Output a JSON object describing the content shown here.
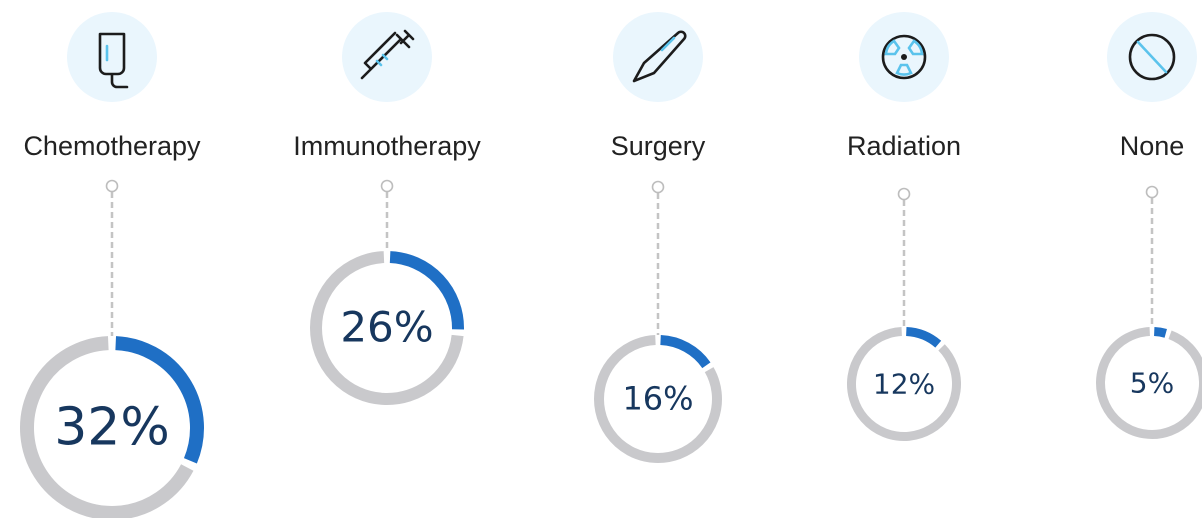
{
  "chart_data": {
    "type": "gauge",
    "categories": [
      "Chemotherapy",
      "Immunotherapy",
      "Surgery",
      "Radiation",
      "None"
    ],
    "values": [
      32,
      26,
      16,
      12,
      5
    ],
    "value_labels": [
      "32%",
      "26%",
      "16%",
      "12%",
      "5%"
    ],
    "color": "#1f6fc5",
    "track_color": "#c9c9cc"
  }
}
